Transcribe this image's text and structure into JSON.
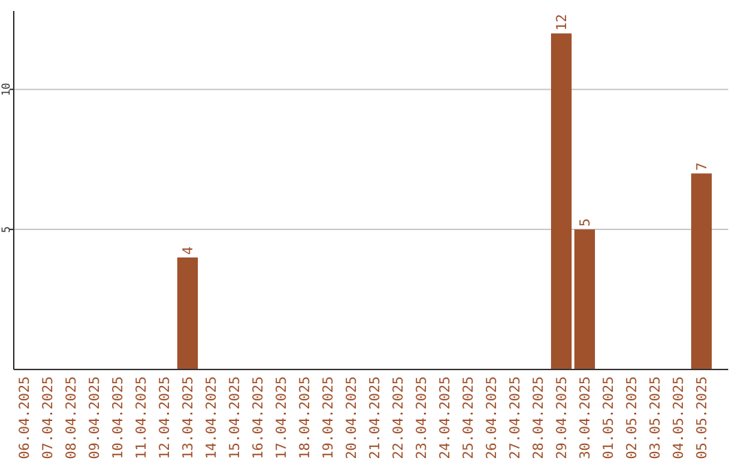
{
  "chart_data": {
    "type": "bar",
    "categories": [
      "06.04.2025",
      "07.04.2025",
      "08.04.2025",
      "09.04.2025",
      "10.04.2025",
      "11.04.2025",
      "12.04.2025",
      "13.04.2025",
      "14.04.2025",
      "15.04.2025",
      "16.04.2025",
      "17.04.2025",
      "18.04.2025",
      "19.04.2025",
      "20.04.2025",
      "21.04.2025",
      "22.04.2025",
      "23.04.2025",
      "24.04.2025",
      "25.04.2025",
      "26.04.2025",
      "27.04.2025",
      "28.04.2025",
      "29.04.2025",
      "30.04.2025",
      "01.05.2025",
      "02.05.2025",
      "03.05.2025",
      "04.05.2025",
      "05.05.2025"
    ],
    "values": [
      0,
      0,
      0,
      0,
      0,
      0,
      0,
      4,
      0,
      0,
      0,
      0,
      0,
      0,
      0,
      0,
      0,
      0,
      0,
      0,
      0,
      0,
      0,
      12,
      5,
      0,
      0,
      0,
      0,
      7
    ],
    "value_labels": [
      null,
      null,
      null,
      null,
      null,
      null,
      null,
      "4",
      null,
      null,
      null,
      null,
      null,
      null,
      null,
      null,
      null,
      null,
      null,
      null,
      null,
      null,
      null,
      "12",
      "5",
      null,
      null,
      null,
      null,
      "7"
    ],
    "color": "#a0522d",
    "ylim": [
      0,
      12.8
    ],
    "yticks": [
      5,
      10
    ],
    "grid": "y"
  }
}
